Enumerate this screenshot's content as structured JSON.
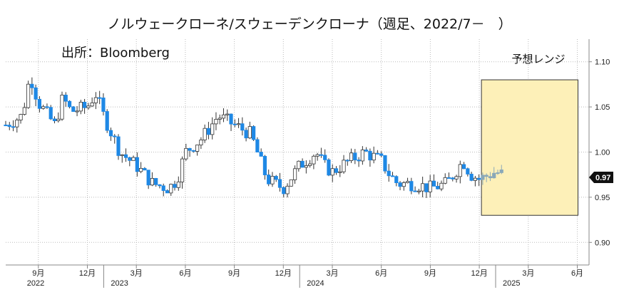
{
  "chart_data": {
    "type": "candlestick",
    "title": "ノルウェークローネ/スウェーデンクローナ（週足、2022/7－　）",
    "source": "出所：Bloomberg",
    "forecast_label": "予想レンジ",
    "last_value_label": "0.97",
    "y_axis": {
      "ylim": [
        0.875,
        1.125
      ],
      "ticks": [
        "0.90",
        "0.95",
        "1.00",
        "1.05",
        "1.10"
      ],
      "position": "right"
    },
    "x_axis": {
      "month_ticks": [
        {
          "label": "9月",
          "month": "2022-09"
        },
        {
          "label": "12月",
          "month": "2022-12"
        },
        {
          "label": "3月",
          "month": "2023-03"
        },
        {
          "label": "6月",
          "month": "2023-06"
        },
        {
          "label": "9月",
          "month": "2023-09"
        },
        {
          "label": "12月",
          "month": "2023-12"
        },
        {
          "label": "3月",
          "month": "2024-03"
        },
        {
          "label": "6月",
          "month": "2024-06"
        },
        {
          "label": "9月",
          "month": "2024-09"
        },
        {
          "label": "12月",
          "month": "2024-12"
        },
        {
          "label": "3月",
          "month": "2025-03"
        },
        {
          "label": "6月",
          "month": "2025-06"
        }
      ],
      "years": [
        {
          "label": "2022",
          "month": "2022-07"
        },
        {
          "label": "2023",
          "month": "2023-01"
        },
        {
          "label": "2024",
          "month": "2024-01"
        },
        {
          "label": "2025",
          "month": "2025-01"
        }
      ]
    },
    "forecast_range": {
      "start": "2024-12",
      "end": "2025-06",
      "low": 0.93,
      "high": 1.08
    },
    "grid": true,
    "colors": {
      "up": "#ffffff",
      "down": "#1e88e5",
      "wick": "#333333",
      "forecast": "#fdf0b8",
      "recent": "#8aa8b8"
    },
    "close_path": [
      [
        "2022-07",
        1.03
      ],
      [
        "2022-08",
        1.04
      ],
      [
        "2022-08",
        1.085
      ],
      [
        "2022-09",
        1.055
      ],
      [
        "2022-10",
        1.03
      ],
      [
        "2022-10",
        1.06
      ],
      [
        "2022-11",
        1.045
      ],
      [
        "2022-12",
        1.05
      ],
      [
        "2022-12",
        1.065
      ],
      [
        "2023-01",
        1.04
      ],
      [
        "2023-02",
        1.0
      ],
      [
        "2023-03",
        0.985
      ],
      [
        "2023-04",
        0.965
      ],
      [
        "2023-05",
        0.96
      ],
      [
        "2023-05",
        0.97
      ],
      [
        "2023-06",
        1.0
      ],
      [
        "2023-07",
        1.015
      ],
      [
        "2023-08",
        1.04
      ],
      [
        "2023-09",
        1.03
      ],
      [
        "2023-10",
        1.02
      ],
      [
        "2023-10",
        0.995
      ],
      [
        "2023-11",
        0.97
      ],
      [
        "2023-12",
        0.96
      ],
      [
        "2024-01",
        0.985
      ],
      [
        "2024-02",
        1.0
      ],
      [
        "2024-02",
        0.985
      ],
      [
        "2024-03",
        0.978
      ],
      [
        "2024-04",
        0.99
      ],
      [
        "2024-05",
        1.0
      ],
      [
        "2024-06",
        0.99
      ],
      [
        "2024-06",
        0.975
      ],
      [
        "2024-07",
        0.965
      ],
      [
        "2024-08",
        0.965
      ],
      [
        "2024-09",
        0.96
      ],
      [
        "2024-10",
        0.965
      ],
      [
        "2024-11",
        0.99
      ],
      [
        "2024-11",
        0.975
      ],
      [
        "2024-12",
        0.97
      ],
      [
        "2025-01",
        0.978
      ],
      [
        "2025-01",
        0.975
      ]
    ]
  }
}
